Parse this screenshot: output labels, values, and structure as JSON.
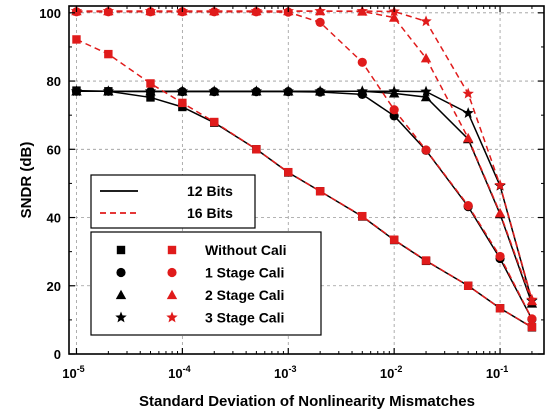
{
  "chart_data": {
    "type": "line",
    "xlabel": "Standard Deviation of Nonlinearity Mismatches",
    "ylabel": "SNDR (dB)",
    "x_scale": "log",
    "xlim": [
      8.5e-06,
      0.26
    ],
    "ylim": [
      0,
      102
    ],
    "grid": true,
    "x_ticks": [
      {
        "value": 1e-05,
        "base": "10",
        "exp": "-5"
      },
      {
        "value": 0.0001,
        "base": "10",
        "exp": "-4"
      },
      {
        "value": 0.001,
        "base": "10",
        "exp": "-3"
      },
      {
        "value": 0.01,
        "base": "10",
        "exp": "-2"
      },
      {
        "value": 0.1,
        "base": "10",
        "exp": "-1"
      }
    ],
    "y_ticks": [
      0,
      20,
      40,
      60,
      80,
      100
    ],
    "x": [
      1e-05,
      2e-05,
      5e-05,
      0.0001,
      0.0002,
      0.0005,
      0.001,
      0.002,
      0.005,
      0.01,
      0.02,
      0.05,
      0.1,
      0.2
    ],
    "legend_lines": [
      {
        "label": "12 Bits",
        "color": "#000000",
        "dash": false
      },
      {
        "label": "16 Bits",
        "color": "#e01b1b",
        "dash": true
      }
    ],
    "legend_markers": [
      {
        "label": "Without Cali",
        "marker": "square"
      },
      {
        "label": "1 Stage Cali",
        "marker": "circle"
      },
      {
        "label": "2 Stage Cali",
        "marker": "triangle"
      },
      {
        "label": "3 Stage Cali",
        "marker": "star"
      }
    ],
    "series": [
      {
        "bits": "12",
        "marker": "square",
        "color": "#000000",
        "dash": false,
        "values": [
          77.2,
          77,
          75.2,
          72.4,
          67.8,
          60,
          53.2,
          47.7,
          40.3,
          33.4,
          27.3,
          20,
          13.4,
          7.8
        ]
      },
      {
        "bits": "12",
        "marker": "circle",
        "color": "#000000",
        "dash": false,
        "values": [
          77,
          77,
          76.9,
          76.9,
          76.9,
          76.9,
          76.9,
          76.8,
          76.1,
          69.8,
          59.7,
          43.2,
          28,
          10.2
        ]
      },
      {
        "bits": "12",
        "marker": "triangle",
        "color": "#000000",
        "dash": false,
        "values": [
          77,
          77,
          77,
          77,
          77,
          77,
          77,
          77,
          77,
          76.4,
          75.3,
          63,
          41,
          14.8
        ]
      },
      {
        "bits": "12",
        "marker": "star",
        "color": "#000000",
        "dash": false,
        "values": [
          77,
          77,
          77,
          77,
          77,
          77,
          77,
          77,
          77,
          77,
          76.9,
          70.6,
          49.3,
          15.6
        ]
      },
      {
        "bits": "16",
        "marker": "square",
        "color": "#e01b1b",
        "dash": true,
        "values": [
          92.2,
          87.9,
          79.3,
          73.6,
          68,
          60,
          53.3,
          47.7,
          40.4,
          33.5,
          27.4,
          20,
          13.4,
          7.9
        ]
      },
      {
        "bits": "16",
        "marker": "circle",
        "color": "#e01b1b",
        "dash": true,
        "values": [
          100.3,
          100.3,
          100.3,
          100.3,
          100.3,
          100.3,
          100.2,
          97.2,
          85.5,
          71.6,
          59.8,
          43.5,
          28.6,
          10.3
        ]
      },
      {
        "bits": "16",
        "marker": "triangle",
        "color": "#e01b1b",
        "dash": true,
        "values": [
          100.5,
          100.5,
          100.5,
          100.5,
          100.5,
          100.5,
          100.5,
          100.5,
          100.4,
          98.6,
          86.7,
          63.3,
          41.3,
          15.5
        ]
      },
      {
        "bits": "16",
        "marker": "star",
        "color": "#e01b1b",
        "dash": true,
        "values": [
          100.5,
          100.5,
          100.5,
          100.5,
          100.5,
          100.5,
          100.5,
          100.5,
          100.5,
          100.4,
          97.5,
          76.3,
          49.5,
          15.9
        ]
      }
    ]
  }
}
